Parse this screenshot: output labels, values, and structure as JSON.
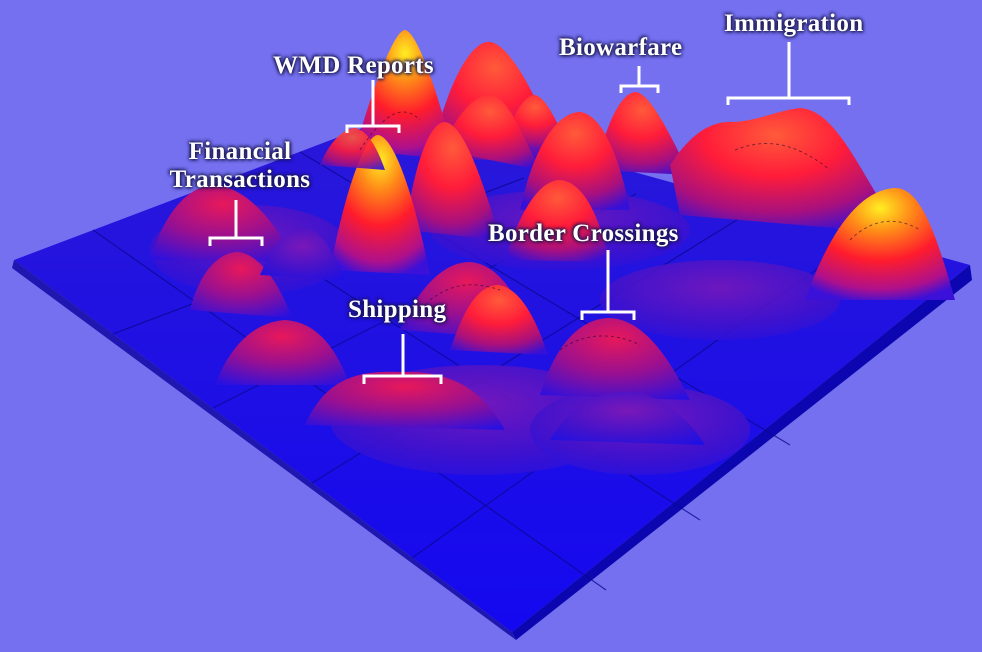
{
  "labels": {
    "wmd_reports": "WMD Reports",
    "biowarfare": "Biowarfare",
    "immigration": "Immigration",
    "financial_line1": "Financial",
    "financial_line2": "Transactions",
    "border_crossings": "Border Crossings",
    "shipping": "Shipping"
  },
  "colors": {
    "background": "#7470ef",
    "plane": "#1410e8",
    "peak_low": "#3a17c8",
    "peak_mid": "#ff1f2e",
    "peak_high": "#ffe21a",
    "bracket": "#ffffff"
  }
}
